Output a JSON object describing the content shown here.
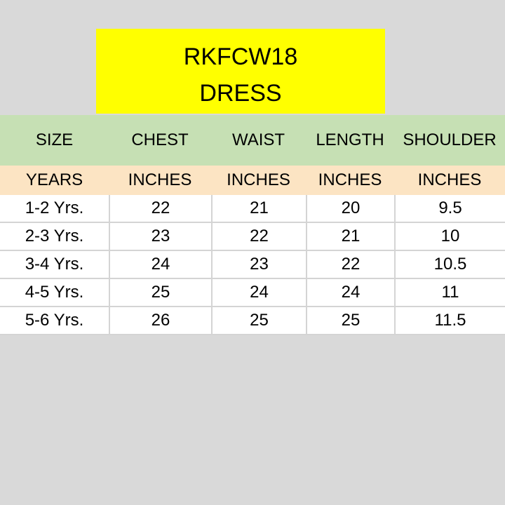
{
  "title": {
    "code": "RKFCW18",
    "type": "DRESS"
  },
  "colors": {
    "background": "#d9d9d9",
    "title_bg": "#ffff00",
    "header_bg": "#c6e0b4",
    "unit_bg": "#fce4c3",
    "row_bg": "#ffffff"
  },
  "table": {
    "headers": [
      "SIZE",
      "CHEST",
      "WAIST",
      "LENGTH",
      "SHOULDER"
    ],
    "units": [
      "YEARS",
      "INCHES",
      "INCHES",
      "INCHES",
      "INCHES"
    ],
    "rows": [
      [
        "1-2 Yrs.",
        "22",
        "21",
        "20",
        "9.5"
      ],
      [
        "2-3 Yrs.",
        "23",
        "22",
        "21",
        "10"
      ],
      [
        "3-4 Yrs.",
        "24",
        "23",
        "22",
        "10.5"
      ],
      [
        "4-5 Yrs.",
        "25",
        "24",
        "24",
        "11"
      ],
      [
        "5-6 Yrs.",
        "26",
        "25",
        "25",
        "11.5"
      ]
    ]
  }
}
